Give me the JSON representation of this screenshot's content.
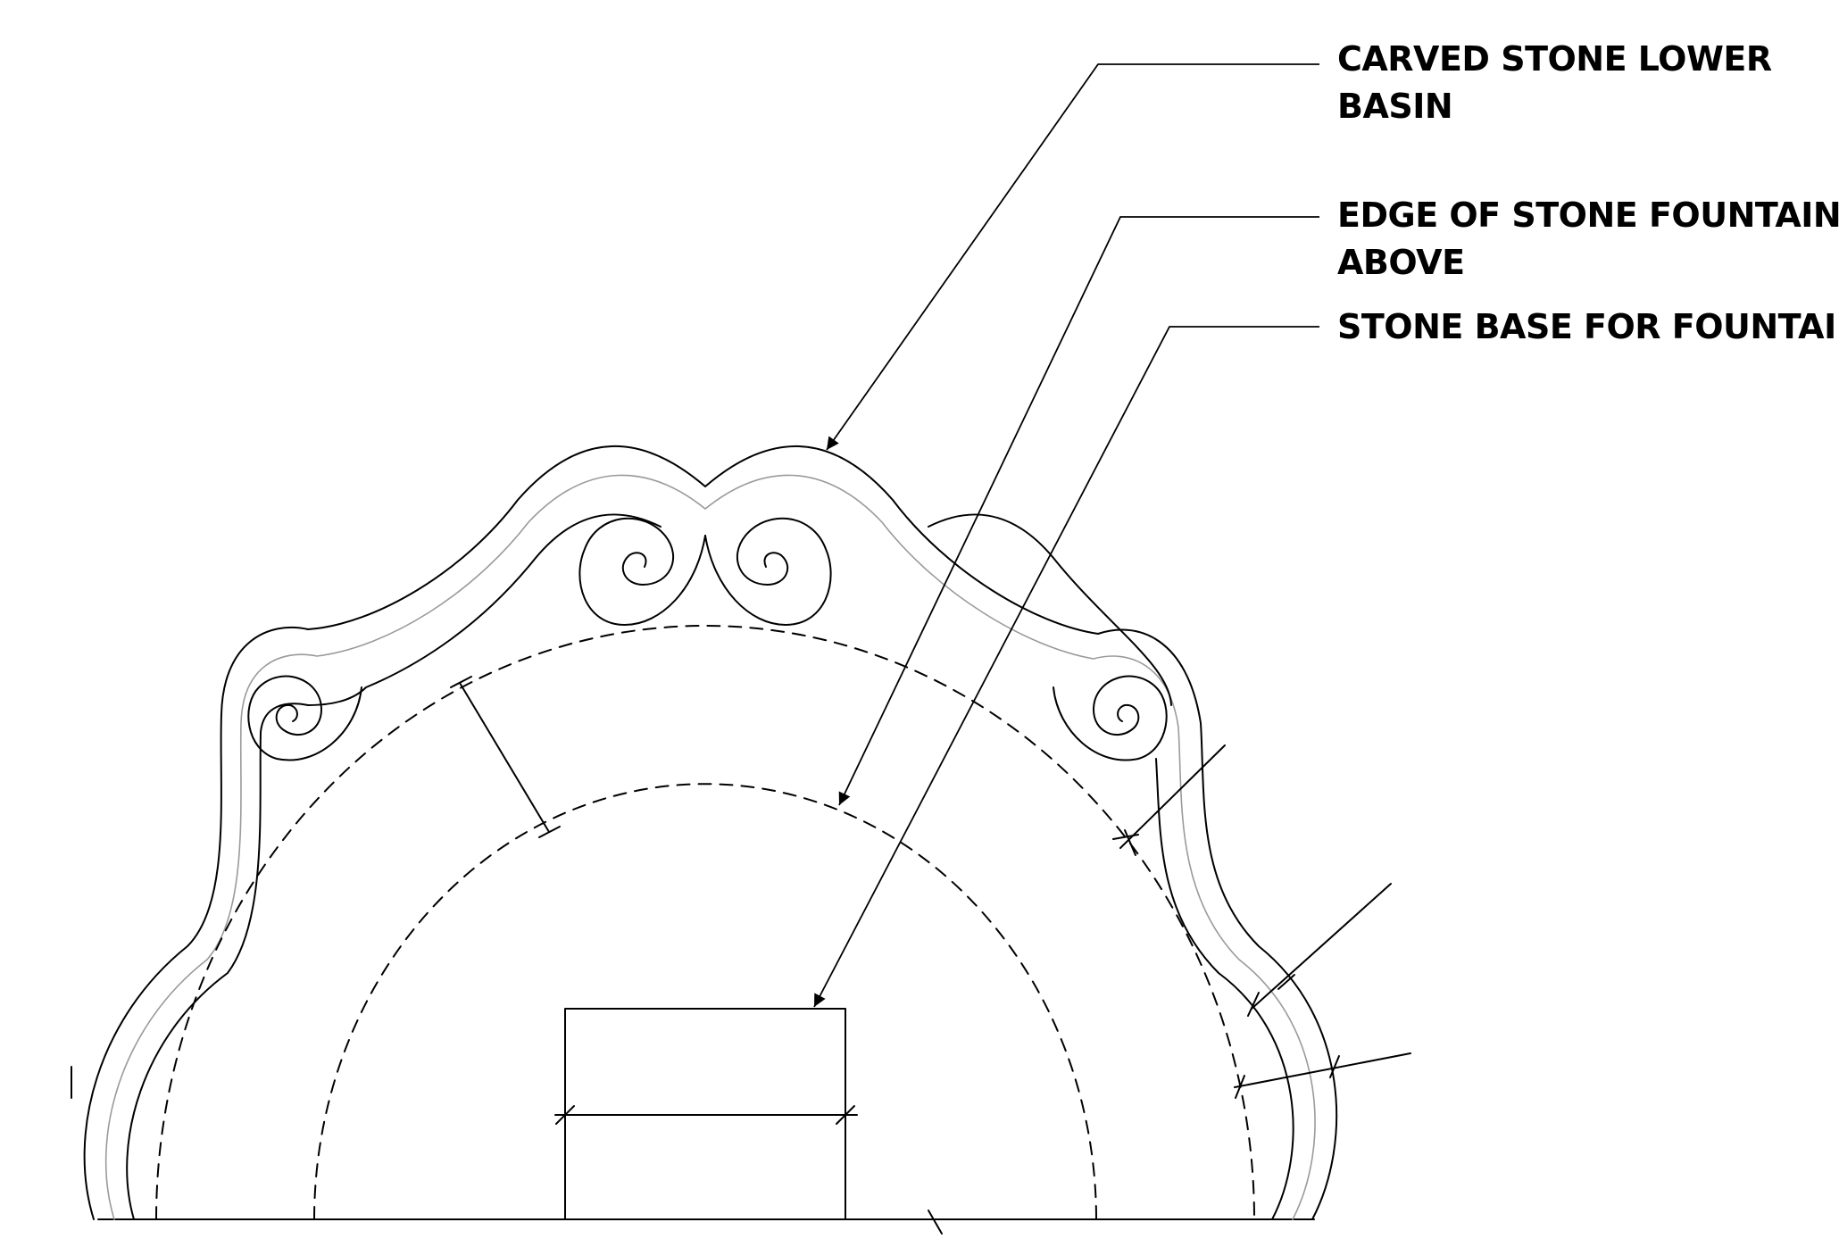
{
  "callouts": [
    {
      "lines": [
        "CARVED STONE LOWER",
        "BASIN"
      ]
    },
    {
      "lines": [
        "EDGE OF STONE FOUNTAIN",
        "ABOVE"
      ]
    },
    {
      "lines": [
        "STONE BASE FOR FOUNTAIN"
      ]
    }
  ]
}
